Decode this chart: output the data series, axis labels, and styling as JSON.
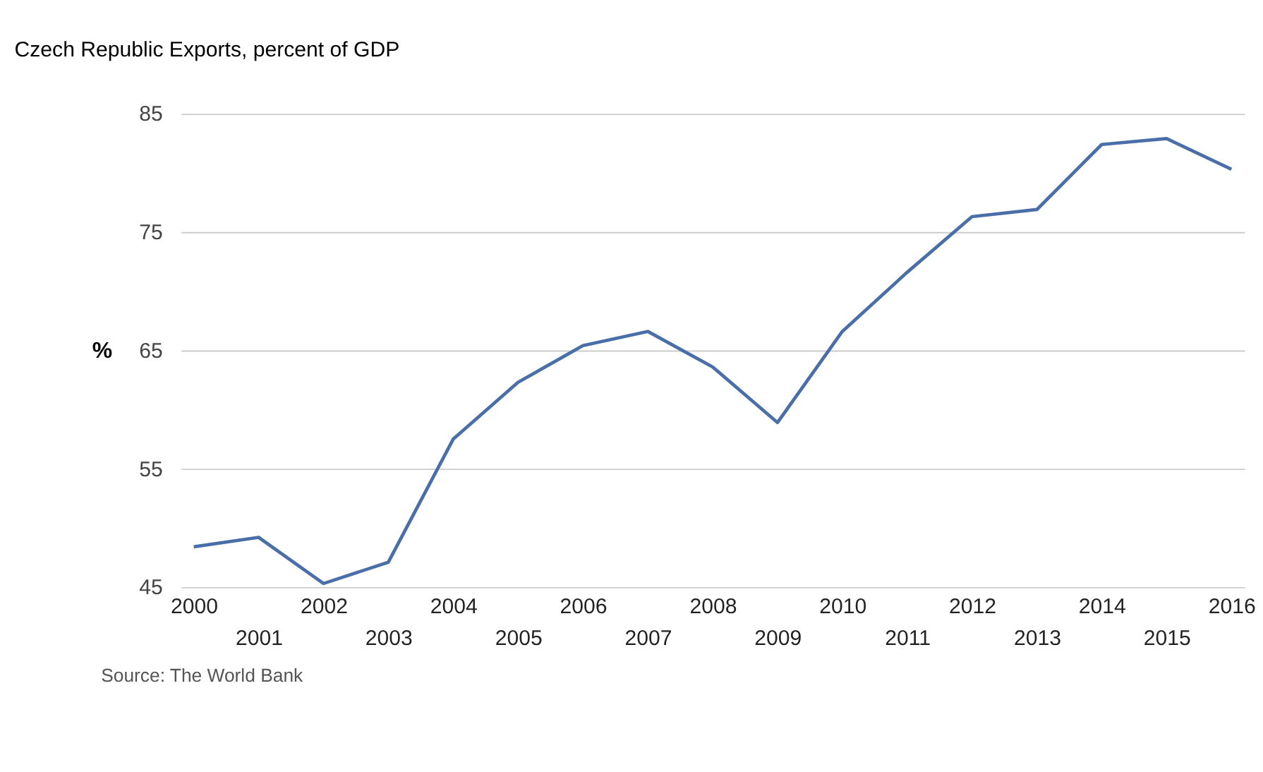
{
  "chart_data": {
    "type": "line",
    "title": "Czech Republic Exports, percent of GDP",
    "ylabel": "%",
    "categories": [
      "2000",
      "2001",
      "2002",
      "2003",
      "2004",
      "2005",
      "2006",
      "2007",
      "2008",
      "2009",
      "2010",
      "2011",
      "2012",
      "2013",
      "2014",
      "2015",
      "2016"
    ],
    "series": [
      {
        "color": "#4a6ea8",
        "values": [
          48.4,
          49.2,
          45.3,
          47.1,
          57.5,
          62.3,
          65.4,
          66.6,
          63.6,
          58.9,
          66.6,
          71.6,
          76.3,
          76.9,
          82.4,
          82.9,
          80.3
        ]
      }
    ],
    "ylim": [
      45,
      85
    ],
    "yticks": [
      45,
      55,
      65,
      75,
      85
    ],
    "grid": "y",
    "legend": false,
    "annotations": [
      "Source: The World Bank"
    ]
  }
}
